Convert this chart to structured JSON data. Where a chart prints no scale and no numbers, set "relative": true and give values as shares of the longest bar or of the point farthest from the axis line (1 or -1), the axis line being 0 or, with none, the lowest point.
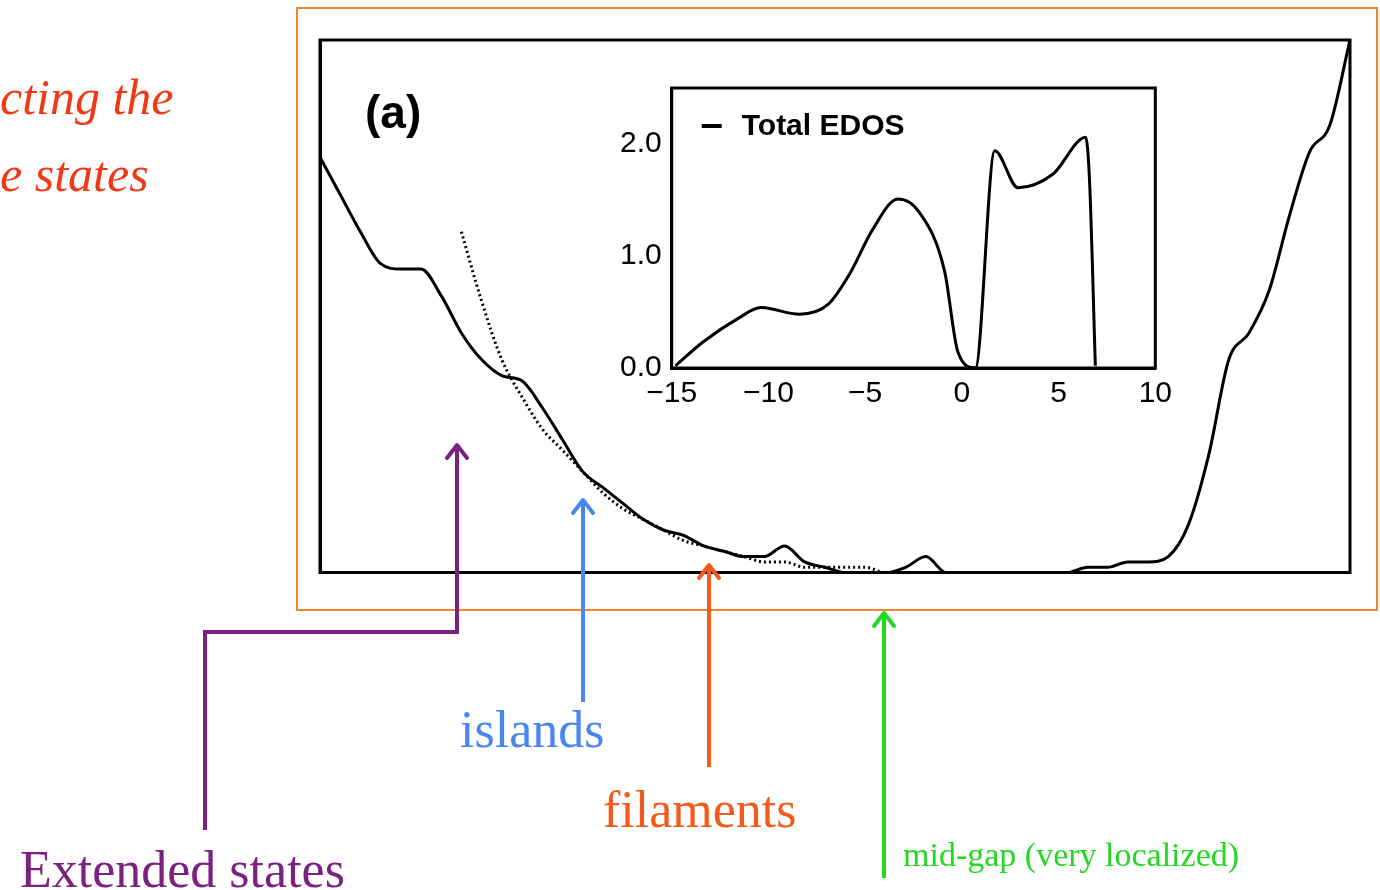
{
  "chart_data": [
    {
      "type": "line",
      "relative": true,
      "grid": false,
      "legend": false,
      "marker": "none",
      "categories": [
        null,
        null,
        null,
        null,
        null,
        null,
        null,
        null,
        null,
        null,
        null,
        null,
        null,
        null,
        null,
        null,
        null,
        null,
        null,
        null,
        null,
        null,
        null,
        null,
        null,
        null,
        null,
        null,
        null,
        null,
        null,
        null,
        null,
        null,
        null,
        null,
        null,
        null,
        null,
        null,
        null,
        null,
        null,
        null,
        null,
        null,
        null,
        null,
        null,
        null,
        null,
        null
      ],
      "series": [
        {
          "color": "#000000",
          "line_style": "solid",
          "values": [
            0.78,
            0.71,
            0.64,
            0.58,
            0.57,
            0.57,
            0.52,
            0.45,
            0.4,
            0.37,
            0.36,
            0.31,
            0.25,
            0.19,
            0.16,
            0.13,
            0.1,
            0.08,
            0.07,
            0.05,
            0.04,
            0.03,
            0.03,
            0.05,
            0.02,
            0.01,
            0,
            0,
            0,
            0.01,
            0.03,
            0,
            0,
            0,
            0,
            0,
            0,
            0,
            0.01,
            0.01,
            0.02,
            0.02,
            0.03,
            0.09,
            0.22,
            0.4,
            0.45,
            0.53,
            0.67,
            0.79,
            0.84,
            1
          ]
        },
        {
          "color": "#000000",
          "line_style": "dotted",
          "values": [
            null,
            null,
            null,
            null,
            null,
            null,
            null,
            0.64,
            0.51,
            0.4,
            0.33,
            0.27,
            0.23,
            0.19,
            0.15,
            0.12,
            0.1,
            0.08,
            0.06,
            0.05,
            0.04,
            0.03,
            0.02,
            0.02,
            0.01,
            0.01,
            0.01,
            0.01,
            0,
            0,
            0,
            0,
            0,
            0,
            0,
            null,
            null,
            null,
            null,
            null,
            null,
            null,
            null,
            null,
            null,
            null,
            null,
            null,
            null,
            null,
            null,
            null
          ]
        }
      ],
      "annotations": [
        "(a)",
        "cting the",
        "e states",
        "Extended states",
        "islands",
        "filaments",
        "mid-gap (very localized)"
      ]
    },
    {
      "type": "line",
      "grid": false,
      "legend": "top left",
      "marker": "none",
      "xlim": [
        -15,
        10
      ],
      "ylim": [
        0,
        2.5
      ],
      "xticks": [
        {
          "value": -15,
          "label": "−15"
        },
        {
          "value": -10,
          "label": "−10"
        },
        {
          "value": -5,
          "label": "−5"
        },
        0,
        5,
        10
      ],
      "yticks": [
        {
          "value": 0,
          "label": "0.0"
        },
        {
          "value": 1,
          "label": "1.0"
        },
        {
          "value": 2,
          "label": "2.0"
        }
      ],
      "series": [
        {
          "name": "Total EDOS",
          "color": "#000000",
          "x": [
            -14.8,
            -13.4,
            -11.5,
            -10.4,
            -8.4,
            -6.9,
            -5.8,
            -4.6,
            -3.3,
            -2.2,
            -0.9,
            -0.2,
            0.7,
            1.7,
            2.9,
            4.7,
            6.4,
            6.6,
            6.9
          ],
          "values": [
            0.02,
            0.23,
            0.45,
            0.54,
            0.48,
            0.57,
            0.84,
            1.24,
            1.51,
            1.39,
            0.87,
            0.14,
            0,
            1.94,
            1.61,
            1.73,
            2.06,
            1.67,
            0.02
          ]
        }
      ]
    }
  ]
}
